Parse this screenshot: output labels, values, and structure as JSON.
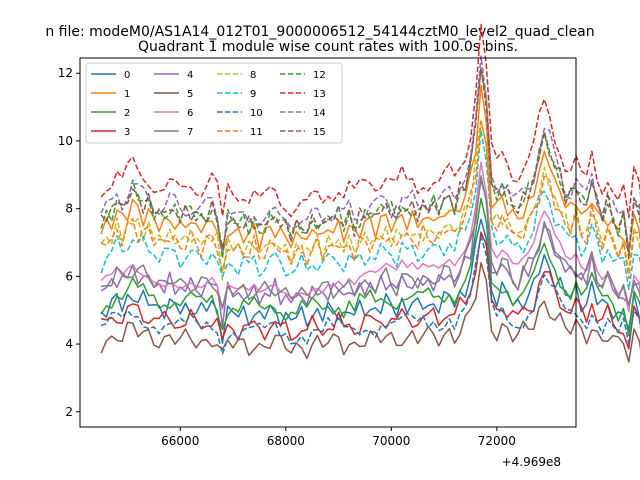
{
  "chart_data": {
    "type": "line",
    "suptitle": "n file: modeM0/AS1A14_012T01_9000006512_54144cztM0_level2_quad_clean",
    "title": "Quadrant 1 module wise count rates with 100.0s bins.",
    "xlabel": "",
    "ylabel": "",
    "x_offset_label": "+4.969e8",
    "xlim": [
      64100,
      73500
    ],
    "ylim": [
      1.55,
      12.45
    ],
    "x_ticks": [
      66000,
      68000,
      70000,
      72000
    ],
    "x_tick_labels": [
      "66000",
      "68000",
      "70000",
      "72000"
    ],
    "y_ticks": [
      2,
      4,
      6,
      8,
      10,
      12
    ],
    "y_tick_labels": [
      "2",
      "4",
      "6",
      "8",
      "10",
      "12"
    ],
    "grid": false,
    "legend_position": "top-left",
    "legend_columns": 4,
    "x_start": 64500,
    "x_step": 100,
    "base_profile": [
      0,
      0.25,
      0.35,
      0.7,
      0.4,
      0.75,
      0.95,
      0.7,
      0.6,
      0.55,
      0.4,
      0.35,
      0.25,
      0.4,
      0.3,
      0.15,
      0.25,
      0.35,
      0.2,
      0.1,
      0.25,
      0.45,
      0.1,
      -0.9,
      0.1,
      -0.05,
      -0.1,
      0.0,
      -0.15,
      0.1,
      -0.2,
      -0.1,
      0.1,
      0.15,
      -0.1,
      -0.15,
      -0.3,
      -0.2,
      -0.1,
      -0.2,
      0.0,
      0.05,
      -0.15,
      0.15,
      0.05,
      0.2,
      -0.1,
      0.2,
      -0.1,
      0.15,
      0.25,
      0.3,
      0.2,
      0.3,
      0.5,
      0.35,
      0.2,
      0.6,
      0.3,
      0.5,
      0.25,
      0.5,
      0.4,
      0.5,
      0.4,
      0.6,
      0.8,
      0.55,
      0.9,
      1.2,
      1.8,
      3.0,
      4.8,
      3.5,
      1.2,
      0.8,
      1.1,
      0.9,
      0.5,
      0.45,
      0.7,
      0.9,
      1.3,
      2.1,
      2.6,
      2.3,
      1.7,
      1.4,
      0.9,
      0.8,
      1.1,
      0.6,
      0.5,
      1.3,
      0.6,
      0.3,
      0.6,
      0.2,
      -0.2,
      0.1,
      -0.9,
      0.6,
      0.3,
      -1.2,
      -3.6,
      0.4,
      -1.8
    ],
    "series": [
      {
        "name": "0",
        "color": "#1f77b4",
        "dash": false,
        "values_offset": 4.9,
        "amplitude": 0.38
      },
      {
        "name": "1",
        "color": "#ff7f0e",
        "dash": false,
        "values_offset": 7.3,
        "amplitude": 0.55
      },
      {
        "name": "2",
        "color": "#2ca02c",
        "dash": false,
        "values_offset": 5.1,
        "amplitude": 0.4
      },
      {
        "name": "3",
        "color": "#d62728",
        "dash": false,
        "values_offset": 4.5,
        "amplitude": 0.38
      },
      {
        "name": "4",
        "color": "#9467bd",
        "dash": false,
        "values_offset": 5.5,
        "amplitude": 0.45
      },
      {
        "name": "5",
        "color": "#8c564b",
        "dash": false,
        "values_offset": 4.0,
        "amplitude": 0.3
      },
      {
        "name": "6",
        "color": "#e377c2",
        "dash": false,
        "values_offset": 5.8,
        "amplitude": 0.45
      },
      {
        "name": "7",
        "color": "#7f7f7f",
        "dash": false,
        "values_offset": 5.6,
        "amplitude": 0.45
      },
      {
        "name": "8",
        "color": "#bcbd22",
        "dash": true,
        "values_offset": 6.9,
        "amplitude": 0.5
      },
      {
        "name": "9",
        "color": "#17becf",
        "dash": true,
        "values_offset": 6.4,
        "amplitude": 0.5
      },
      {
        "name": "10",
        "color": "#1f77b4",
        "dash": true,
        "values_offset": 4.4,
        "amplitude": 0.35
      },
      {
        "name": "11",
        "color": "#ff7f0e",
        "dash": true,
        "values_offset": 6.8,
        "amplitude": 0.5
      },
      {
        "name": "12",
        "color": "#2ca02c",
        "dash": true,
        "values_offset": 7.6,
        "amplitude": 0.6
      },
      {
        "name": "13",
        "color": "#d62728",
        "dash": true,
        "values_offset": 8.4,
        "amplitude": 0.65
      },
      {
        "name": "14",
        "color": "#9467bd",
        "dash": true,
        "values_offset": 7.8,
        "amplitude": 0.6
      },
      {
        "name": "15",
        "color": "#8c564b",
        "dash": true,
        "values_offset": 7.6,
        "amplitude": 0.6
      }
    ]
  }
}
